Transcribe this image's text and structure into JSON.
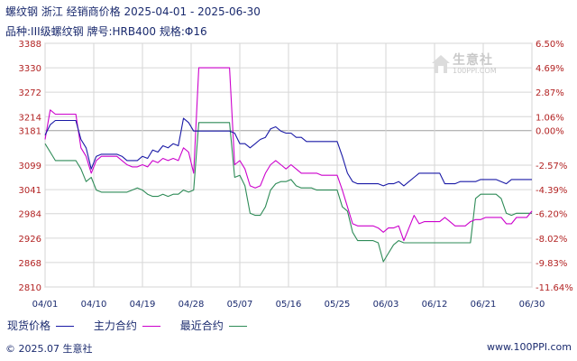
{
  "header": {
    "title": "螺纹钢 浙江 经销商价格 2025-04-01 - 2025-06-30",
    "subtitle": "品种:III级螺纹钢 牌号:HRB400 规格:Φ16"
  },
  "watermark": {
    "text": "生意社",
    "sub": "100PPI.COM"
  },
  "footer": {
    "left": "© 2025.07 生意社",
    "right": "www.100PPI.com"
  },
  "colors": {
    "spot": "#1a1aa6",
    "main": "#cc00cc",
    "recent": "#2e8b57",
    "grid": "#d6d6d6",
    "axis_text": "#b22222",
    "x_text": "#1a2a6e"
  },
  "chart_data": {
    "type": "line",
    "x_tick_labels": [
      "04/01",
      "04/10",
      "04/19",
      "04/28",
      "05/07",
      "05/16",
      "05/25",
      "06/03",
      "06/12",
      "06/21",
      "06/30"
    ],
    "y_left_ticks": [
      "3388",
      "3330",
      "3272",
      "3214",
      "3181",
      "3099",
      "3041",
      "2984",
      "2926",
      "2868",
      "2810"
    ],
    "y_right_ticks": [
      "6.50%",
      "4.69%",
      "2.87%",
      "1.06%",
      "0.00%",
      "-2.57%",
      "-4.39%",
      "-6.20%",
      "-8.02%",
      "-9.83%",
      "-11.64%"
    ],
    "ylim": [
      2810,
      3388
    ],
    "baseline": 3181,
    "legend": [
      {
        "key": "spot",
        "label": "现货价格"
      },
      {
        "key": "main",
        "label": "主力合约"
      },
      {
        "key": "recent",
        "label": "最近合约"
      }
    ],
    "series": [
      {
        "name": "现货价格",
        "key": "spot",
        "points": [
          [
            1,
            3170
          ],
          [
            2,
            3195
          ],
          [
            3,
            3205
          ],
          [
            4,
            3205
          ],
          [
            5,
            3205
          ],
          [
            6,
            3205
          ],
          [
            7,
            3205
          ],
          [
            8,
            3160
          ],
          [
            9,
            3140
          ],
          [
            10,
            3090
          ],
          [
            11,
            3120
          ],
          [
            12,
            3125
          ],
          [
            13,
            3125
          ],
          [
            14,
            3125
          ],
          [
            15,
            3125
          ],
          [
            16,
            3120
          ],
          [
            17,
            3110
          ],
          [
            18,
            3110
          ],
          [
            19,
            3110
          ],
          [
            20,
            3120
          ],
          [
            21,
            3115
          ],
          [
            22,
            3135
          ],
          [
            23,
            3130
          ],
          [
            24,
            3145
          ],
          [
            25,
            3140
          ],
          [
            26,
            3150
          ],
          [
            27,
            3145
          ],
          [
            28,
            3210
          ],
          [
            29,
            3200
          ],
          [
            30,
            3180
          ],
          [
            31,
            3180
          ],
          [
            32,
            3180
          ],
          [
            33,
            3180
          ],
          [
            34,
            3180
          ],
          [
            35,
            3180
          ],
          [
            36,
            3180
          ],
          [
            37,
            3180
          ],
          [
            38,
            3175
          ],
          [
            39,
            3150
          ],
          [
            40,
            3150
          ],
          [
            41,
            3140
          ],
          [
            42,
            3150
          ],
          [
            43,
            3160
          ],
          [
            44,
            3165
          ],
          [
            45,
            3185
          ],
          [
            46,
            3190
          ],
          [
            47,
            3180
          ],
          [
            48,
            3175
          ],
          [
            49,
            3175
          ],
          [
            50,
            3165
          ],
          [
            51,
            3165
          ],
          [
            52,
            3155
          ],
          [
            53,
            3155
          ],
          [
            54,
            3155
          ],
          [
            55,
            3155
          ],
          [
            56,
            3155
          ],
          [
            57,
            3155
          ],
          [
            58,
            3155
          ],
          [
            59,
            3120
          ],
          [
            60,
            3080
          ],
          [
            61,
            3060
          ],
          [
            62,
            3055
          ],
          [
            63,
            3055
          ],
          [
            64,
            3055
          ],
          [
            65,
            3055
          ],
          [
            66,
            3055
          ],
          [
            67,
            3050
          ],
          [
            68,
            3055
          ],
          [
            69,
            3055
          ],
          [
            70,
            3060
          ],
          [
            71,
            3050
          ],
          [
            72,
            3060
          ],
          [
            73,
            3070
          ],
          [
            74,
            3080
          ],
          [
            75,
            3080
          ],
          [
            76,
            3080
          ],
          [
            77,
            3080
          ],
          [
            78,
            3080
          ],
          [
            79,
            3055
          ],
          [
            80,
            3055
          ],
          [
            81,
            3055
          ],
          [
            82,
            3060
          ],
          [
            83,
            3060
          ],
          [
            84,
            3060
          ],
          [
            85,
            3060
          ],
          [
            86,
            3065
          ],
          [
            87,
            3065
          ],
          [
            88,
            3065
          ],
          [
            89,
            3065
          ],
          [
            90,
            3060
          ],
          [
            91,
            3055
          ],
          [
            92,
            3065
          ],
          [
            93,
            3065
          ],
          [
            94,
            3065
          ],
          [
            95,
            3065
          ],
          [
            96,
            3065
          ]
        ]
      },
      {
        "name": "主力合约",
        "key": "main",
        "points": [
          [
            1,
            3160
          ],
          [
            2,
            3230
          ],
          [
            3,
            3220
          ],
          [
            4,
            3220
          ],
          [
            5,
            3220
          ],
          [
            6,
            3220
          ],
          [
            7,
            3220
          ],
          [
            8,
            3140
          ],
          [
            9,
            3120
          ],
          [
            10,
            3080
          ],
          [
            11,
            3110
          ],
          [
            12,
            3120
          ],
          [
            13,
            3120
          ],
          [
            14,
            3120
          ],
          [
            15,
            3120
          ],
          [
            16,
            3110
          ],
          [
            17,
            3100
          ],
          [
            18,
            3095
          ],
          [
            19,
            3095
          ],
          [
            20,
            3100
          ],
          [
            21,
            3095
          ],
          [
            22,
            3110
          ],
          [
            23,
            3105
          ],
          [
            24,
            3115
          ],
          [
            25,
            3110
          ],
          [
            26,
            3115
          ],
          [
            27,
            3110
          ],
          [
            28,
            3140
          ],
          [
            29,
            3130
          ],
          [
            30,
            3080
          ],
          [
            31,
            3330
          ],
          [
            32,
            3330
          ],
          [
            33,
            3330
          ],
          [
            34,
            3330
          ],
          [
            35,
            3330
          ],
          [
            36,
            3330
          ],
          [
            37,
            3330
          ],
          [
            38,
            3100
          ],
          [
            39,
            3110
          ],
          [
            40,
            3090
          ],
          [
            41,
            3050
          ],
          [
            42,
            3045
          ],
          [
            43,
            3050
          ],
          [
            44,
            3080
          ],
          [
            45,
            3100
          ],
          [
            46,
            3110
          ],
          [
            47,
            3100
          ],
          [
            48,
            3090
          ],
          [
            49,
            3100
          ],
          [
            50,
            3090
          ],
          [
            51,
            3080
          ],
          [
            52,
            3080
          ],
          [
            53,
            3080
          ],
          [
            54,
            3080
          ],
          [
            55,
            3075
          ],
          [
            56,
            3075
          ],
          [
            57,
            3075
          ],
          [
            58,
            3075
          ],
          [
            59,
            3040
          ],
          [
            60,
            3000
          ],
          [
            61,
            2960
          ],
          [
            62,
            2955
          ],
          [
            63,
            2955
          ],
          [
            64,
            2955
          ],
          [
            65,
            2955
          ],
          [
            66,
            2950
          ],
          [
            67,
            2940
          ],
          [
            68,
            2950
          ],
          [
            69,
            2950
          ],
          [
            70,
            2955
          ],
          [
            71,
            2920
          ],
          [
            72,
            2950
          ],
          [
            73,
            2980
          ],
          [
            74,
            2960
          ],
          [
            75,
            2965
          ],
          [
            76,
            2965
          ],
          [
            77,
            2965
          ],
          [
            78,
            2965
          ],
          [
            79,
            2975
          ],
          [
            80,
            2965
          ],
          [
            81,
            2955
          ],
          [
            82,
            2955
          ],
          [
            83,
            2955
          ],
          [
            84,
            2965
          ],
          [
            85,
            2970
          ],
          [
            86,
            2970
          ],
          [
            87,
            2975
          ],
          [
            88,
            2975
          ],
          [
            89,
            2975
          ],
          [
            90,
            2975
          ],
          [
            91,
            2960
          ],
          [
            92,
            2960
          ],
          [
            93,
            2975
          ],
          [
            94,
            2975
          ],
          [
            95,
            2975
          ],
          [
            96,
            2990
          ]
        ]
      },
      {
        "name": "最近合约",
        "key": "recent",
        "points": [
          [
            1,
            3150
          ],
          [
            2,
            3130
          ],
          [
            3,
            3110
          ],
          [
            4,
            3110
          ],
          [
            5,
            3110
          ],
          [
            6,
            3110
          ],
          [
            7,
            3110
          ],
          [
            8,
            3090
          ],
          [
            9,
            3060
          ],
          [
            10,
            3070
          ],
          [
            11,
            3040
          ],
          [
            12,
            3035
          ],
          [
            13,
            3035
          ],
          [
            14,
            3035
          ],
          [
            15,
            3035
          ],
          [
            16,
            3035
          ],
          [
            17,
            3035
          ],
          [
            18,
            3040
          ],
          [
            19,
            3045
          ],
          [
            20,
            3040
          ],
          [
            21,
            3030
          ],
          [
            22,
            3025
          ],
          [
            23,
            3025
          ],
          [
            24,
            3030
          ],
          [
            25,
            3025
          ],
          [
            26,
            3030
          ],
          [
            27,
            3030
          ],
          [
            28,
            3040
          ],
          [
            29,
            3035
          ],
          [
            30,
            3040
          ],
          [
            31,
            3200
          ],
          [
            32,
            3200
          ],
          [
            33,
            3200
          ],
          [
            34,
            3200
          ],
          [
            35,
            3200
          ],
          [
            36,
            3200
          ],
          [
            37,
            3200
          ],
          [
            38,
            3070
          ],
          [
            39,
            3075
          ],
          [
            40,
            3050
          ],
          [
            41,
            2985
          ],
          [
            42,
            2980
          ],
          [
            43,
            2980
          ],
          [
            44,
            3000
          ],
          [
            45,
            3040
          ],
          [
            46,
            3055
          ],
          [
            47,
            3060
          ],
          [
            48,
            3060
          ],
          [
            49,
            3065
          ],
          [
            50,
            3050
          ],
          [
            51,
            3045
          ],
          [
            52,
            3045
          ],
          [
            53,
            3045
          ],
          [
            54,
            3040
          ],
          [
            55,
            3040
          ],
          [
            56,
            3040
          ],
          [
            57,
            3040
          ],
          [
            58,
            3040
          ],
          [
            59,
            3000
          ],
          [
            60,
            2990
          ],
          [
            61,
            2940
          ],
          [
            62,
            2920
          ],
          [
            63,
            2920
          ],
          [
            64,
            2920
          ],
          [
            65,
            2920
          ],
          [
            66,
            2915
          ],
          [
            67,
            2870
          ],
          [
            68,
            2890
          ],
          [
            69,
            2910
          ],
          [
            70,
            2920
          ],
          [
            71,
            2915
          ],
          [
            72,
            2915
          ],
          [
            73,
            2915
          ],
          [
            74,
            2915
          ],
          [
            75,
            2915
          ],
          [
            76,
            2915
          ],
          [
            77,
            2915
          ],
          [
            78,
            2915
          ],
          [
            79,
            2915
          ],
          [
            80,
            2915
          ],
          [
            81,
            2915
          ],
          [
            82,
            2915
          ],
          [
            83,
            2915
          ],
          [
            84,
            2915
          ],
          [
            85,
            3020
          ],
          [
            86,
            3030
          ],
          [
            87,
            3030
          ],
          [
            88,
            3030
          ],
          [
            89,
            3030
          ],
          [
            90,
            3020
          ],
          [
            91,
            2985
          ],
          [
            92,
            2980
          ],
          [
            93,
            2985
          ],
          [
            94,
            2985
          ],
          [
            95,
            2985
          ],
          [
            96,
            2985
          ]
        ]
      }
    ],
    "x_range": [
      1,
      96
    ]
  }
}
